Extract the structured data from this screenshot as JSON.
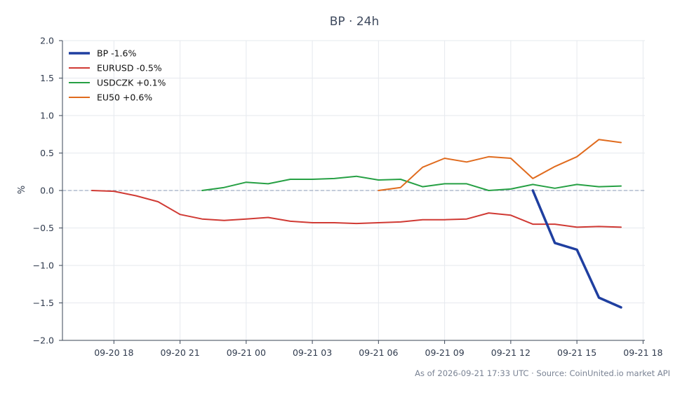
{
  "chart_data": {
    "type": "line",
    "title": "BP · 24h",
    "ylabel": "%",
    "xlabel": "",
    "ylim": [
      -2.0,
      2.0
    ],
    "xlim": [
      "09-20 15:40",
      "09-21 18:05"
    ],
    "yticks": [
      "−2.0",
      "−1.5",
      "−1.0",
      "−0.5",
      "0.0",
      "0.5",
      "1.0",
      "1.5",
      "2.0"
    ],
    "xticks": [
      "09-20 18",
      "09-20 21",
      "09-21 00",
      "09-21 03",
      "09-21 06",
      "09-21 09",
      "09-21 12",
      "09-21 15",
      "09-21 18"
    ],
    "grid": true,
    "baseline": 0,
    "legend_position": "top-left",
    "series": [
      {
        "name": "BP -1.6%",
        "color": "#1f3fa0",
        "x": [
          "09-21 13:00",
          "09-21 14:00",
          "09-21 15:00",
          "09-21 16:00",
          "09-21 17:00"
        ],
        "values": [
          0.0,
          -0.7,
          -0.79,
          -1.43,
          -1.56
        ]
      },
      {
        "name": "EURUSD -0.5%",
        "color": "#d03a34",
        "x": [
          "09-20 17:00",
          "09-20 18:00",
          "09-20 19:00",
          "09-20 20:00",
          "09-20 21:00",
          "09-20 22:00",
          "09-20 23:00",
          "09-21 00:00",
          "09-21 01:00",
          "09-21 02:00",
          "09-21 03:00",
          "09-21 04:00",
          "09-21 05:00",
          "09-21 06:00",
          "09-21 07:00",
          "09-21 08:00",
          "09-21 09:00",
          "09-21 10:00",
          "09-21 11:00",
          "09-21 12:00",
          "09-21 13:00",
          "09-21 14:00",
          "09-21 15:00",
          "09-21 16:00",
          "09-21 17:00"
        ],
        "values": [
          0.0,
          -0.01,
          -0.07,
          -0.15,
          -0.32,
          -0.38,
          -0.4,
          -0.38,
          -0.36,
          -0.41,
          -0.43,
          -0.43,
          -0.44,
          -0.43,
          -0.42,
          -0.39,
          -0.39,
          -0.38,
          -0.3,
          -0.33,
          -0.45,
          -0.45,
          -0.49,
          -0.48,
          -0.49
        ]
      },
      {
        "name": "USDCZK +0.1%",
        "color": "#26a044",
        "x": [
          "09-20 22:00",
          "09-20 23:00",
          "09-21 00:00",
          "09-21 01:00",
          "09-21 02:00",
          "09-21 03:00",
          "09-21 04:00",
          "09-21 05:00",
          "09-21 06:00",
          "09-21 07:00",
          "09-21 08:00",
          "09-21 09:00",
          "09-21 10:00",
          "09-21 11:00",
          "09-21 12:00",
          "09-21 13:00",
          "09-21 14:00",
          "09-21 15:00",
          "09-21 16:00",
          "09-21 17:00"
        ],
        "values": [
          0.0,
          0.04,
          0.11,
          0.09,
          0.15,
          0.15,
          0.16,
          0.19,
          0.14,
          0.15,
          0.05,
          0.09,
          0.09,
          0.0,
          0.02,
          0.08,
          0.03,
          0.08,
          0.05,
          0.06
        ]
      },
      {
        "name": "EU50 +0.6%",
        "color": "#e06b1e",
        "x": [
          "09-21 06:00",
          "09-21 07:00",
          "09-21 08:00",
          "09-21 09:00",
          "09-21 10:00",
          "09-21 11:00",
          "09-21 12:00",
          "09-21 13:00",
          "09-21 14:00",
          "09-21 15:00",
          "09-21 16:00",
          "09-21 17:00"
        ],
        "values": [
          0.0,
          0.04,
          0.31,
          0.43,
          0.38,
          0.45,
          0.43,
          0.16,
          0.32,
          0.45,
          0.68,
          0.64
        ]
      }
    ],
    "footer": "As of 2026-09-21 17:33 UTC · Source: CoinUnited.io market API"
  }
}
